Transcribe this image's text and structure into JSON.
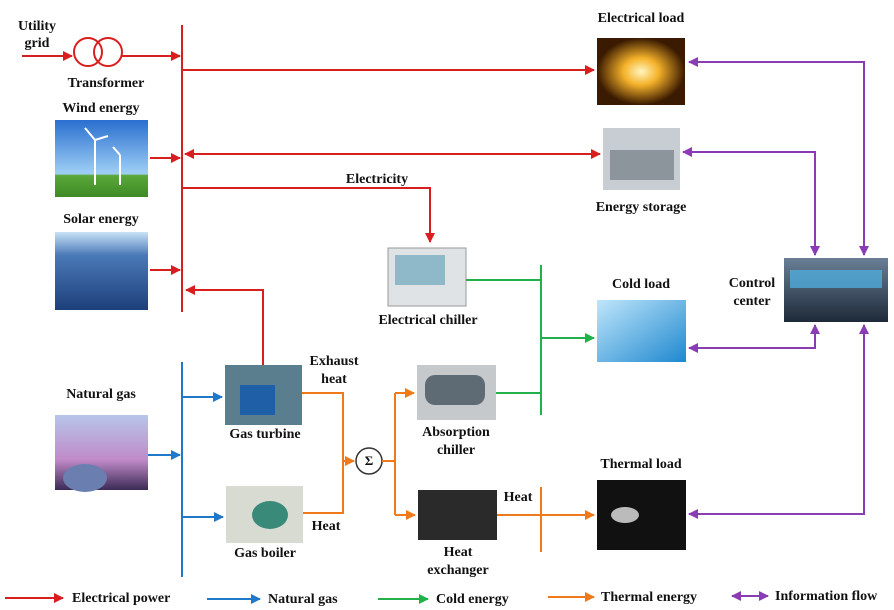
{
  "nodes": {
    "utility_grid": {
      "label": [
        "Utility",
        "grid"
      ]
    },
    "transformer": {
      "label": "Transformer"
    },
    "wind": {
      "label": "Wind energy"
    },
    "solar": {
      "label": "Solar energy"
    },
    "natural_gas": {
      "label": "Natural gas"
    },
    "gas_turbine": {
      "label": "Gas turbine"
    },
    "gas_boiler": {
      "label": "Gas boiler"
    },
    "sum": {
      "label": "Σ"
    },
    "electrical_chiller": {
      "label": "Electrical chiller"
    },
    "absorption_chiller": {
      "label": [
        "Absorption",
        "chiller"
      ]
    },
    "heat_exchanger": {
      "label": [
        "Heat",
        "exchanger"
      ]
    },
    "electrical_load": {
      "label": "Electrical load"
    },
    "energy_storage": {
      "label": "Energy storage"
    },
    "cold_load": {
      "label": "Cold load"
    },
    "thermal_load": {
      "label": "Thermal load"
    },
    "control_center": {
      "label": [
        "Control",
        "center"
      ]
    }
  },
  "edge_labels": {
    "electricity": "Electricity",
    "exhaust_heat": [
      "Exhaust",
      "heat"
    ],
    "boiler_heat": "Heat",
    "exchanger_heat": "Heat"
  },
  "legend": [
    {
      "label": "Electrical power"
    },
    {
      "label": "Natural gas"
    },
    {
      "label": "Cold energy"
    },
    {
      "label": "Thermal energy"
    },
    {
      "label": "Information flow"
    }
  ]
}
